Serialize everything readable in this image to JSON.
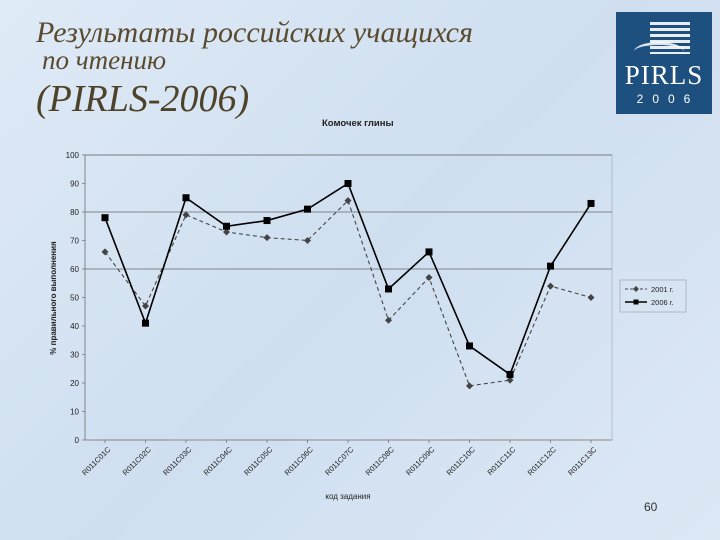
{
  "slide": {
    "title_line1": "Результаты российских учащихся",
    "title_line2": "по чтению",
    "subtitle": "(PIRLS-2006)",
    "page_number": "60"
  },
  "logo": {
    "text": "PIRLS",
    "year": "2006",
    "background": "#1d4f7f"
  },
  "chart_data": {
    "type": "line",
    "title": "Комочек глины",
    "xlabel": "код задания",
    "ylabel": "% правильного выполнения",
    "ylim": [
      0,
      100
    ],
    "yticks": [
      0,
      10,
      20,
      30,
      40,
      50,
      60,
      70,
      80,
      90,
      100
    ],
    "categories": [
      "R011C01C",
      "R011C02C",
      "R011C03C",
      "R011C04C",
      "R011C05C",
      "R011C06C",
      "R011C07C",
      "R011C08C",
      "R011C09C",
      "R011C10C",
      "R011C11C",
      "R011C12C",
      "R011C13C"
    ],
    "series": [
      {
        "name": "2001 г.",
        "values": [
          66,
          47,
          79,
          73,
          71,
          70,
          84,
          42,
          57,
          19,
          21,
          54,
          50
        ],
        "color": "#444444",
        "style": "dashed",
        "marker": "diamond"
      },
      {
        "name": "2006 г.",
        "values": [
          78,
          41,
          85,
          75,
          77,
          81,
          90,
          53,
          66,
          33,
          23,
          61,
          83
        ],
        "color": "#000000",
        "style": "solid",
        "marker": "square"
      }
    ],
    "gridlines_at": [
      60,
      80,
      100
    ],
    "legend_position": "right"
  }
}
